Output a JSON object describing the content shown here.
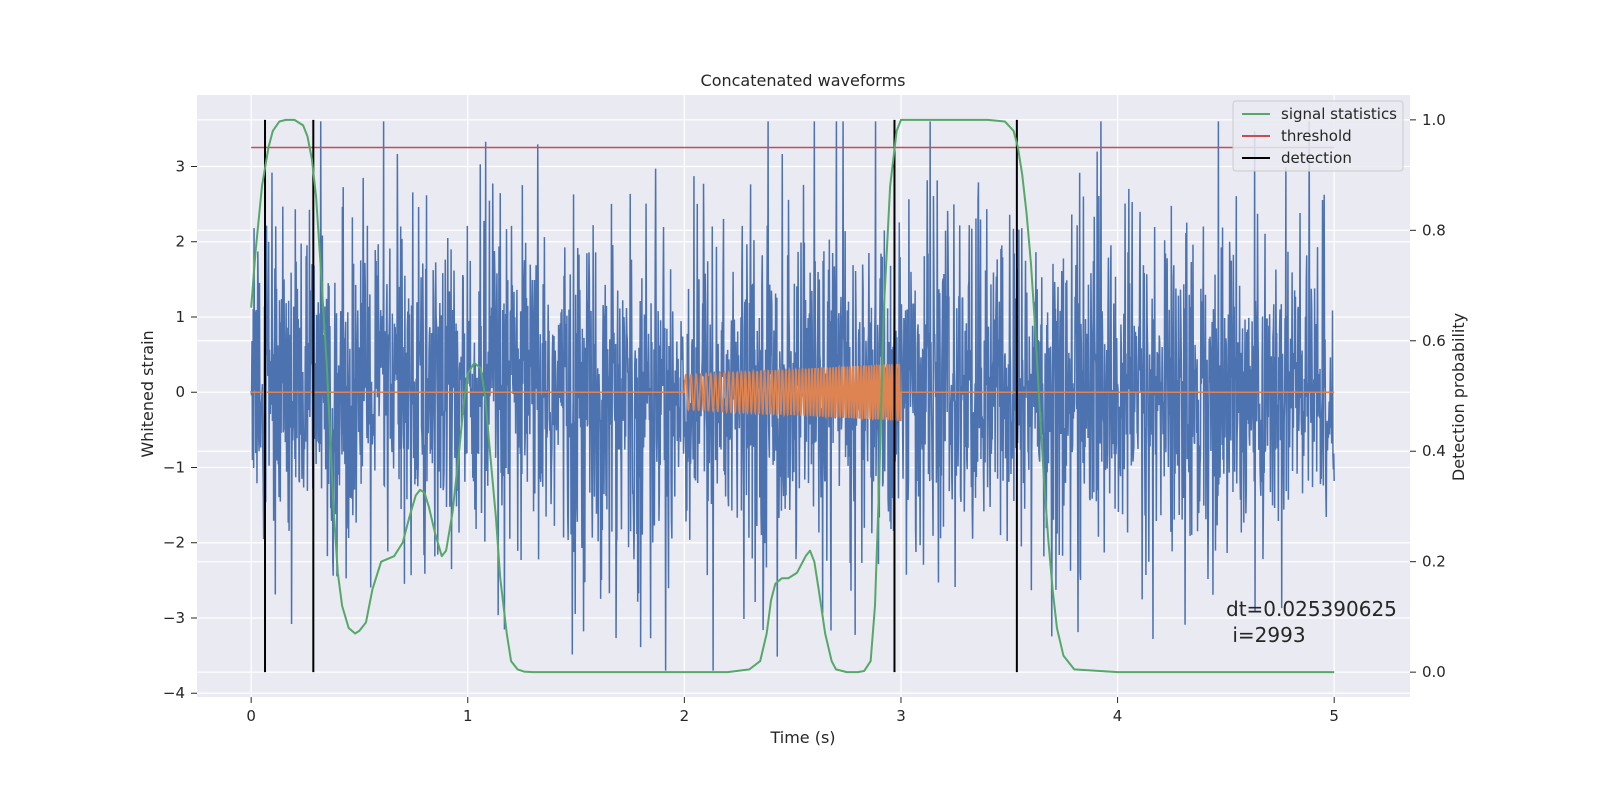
{
  "chart_data": {
    "type": "line",
    "title": "Concatenated waveforms",
    "xlabel": "Time (s)",
    "ylabel": "Whitened strain",
    "y2label": "Detection probability",
    "xlim": [
      -0.25,
      5.35
    ],
    "ylim": [
      -4.05,
      3.95
    ],
    "y2lim": [
      -0.045,
      1.045
    ],
    "x_ticks": [
      0,
      1,
      2,
      3,
      4,
      5
    ],
    "y_ticks": [
      -4,
      -3,
      -2,
      -1,
      0,
      1,
      2,
      3
    ],
    "y2_ticks": [
      0.0,
      0.2,
      0.4,
      0.6,
      0.8,
      1.0
    ],
    "x_tick_labels": [
      "0",
      "1",
      "2",
      "3",
      "4",
      "5"
    ],
    "y_tick_labels": [
      "−4",
      "−3",
      "−2",
      "−1",
      "0",
      "1",
      "2",
      "3"
    ],
    "y2_tick_labels": [
      "0.0",
      "0.2",
      "0.4",
      "0.6",
      "0.8",
      "1.0"
    ],
    "grid": true,
    "legend_position": "top-right",
    "series": [
      {
        "name": "",
        "role": "whitened noise strain",
        "color": "#4c72b0",
        "x_range": [
          0,
          5
        ],
        "amplitude_envelope": [
          -3.7,
          3.6
        ]
      },
      {
        "name": "",
        "role": "injected chirp waveform",
        "color": "#dd8452",
        "x_range": [
          0,
          5
        ],
        "chirp_x_range": [
          2.0,
          3.0
        ],
        "chirp_amplitude_start": 0.23,
        "chirp_amplitude_end": 0.38
      },
      {
        "name": "signal statistics",
        "axis": "right",
        "color": "#55a868",
        "x": [
          0.0,
          0.02,
          0.05,
          0.08,
          0.1,
          0.13,
          0.16,
          0.2,
          0.24,
          0.26,
          0.28,
          0.3,
          0.32,
          0.35,
          0.38,
          0.4,
          0.42,
          0.45,
          0.48,
          0.5,
          0.53,
          0.56,
          0.6,
          0.63,
          0.66,
          0.7,
          0.73,
          0.76,
          0.78,
          0.8,
          0.82,
          0.85,
          0.88,
          0.9,
          0.93,
          0.96,
          0.98,
          1.0,
          1.03,
          1.06,
          1.08,
          1.1,
          1.13,
          1.15,
          1.18,
          1.2,
          1.23,
          1.26,
          1.3,
          1.35,
          1.5,
          1.8,
          2.1,
          2.2,
          2.3,
          2.35,
          2.38,
          2.4,
          2.42,
          2.45,
          2.48,
          2.52,
          2.56,
          2.58,
          2.6,
          2.62,
          2.65,
          2.68,
          2.7,
          2.75,
          2.8,
          2.83,
          2.86,
          2.88,
          2.9,
          2.92,
          2.95,
          2.98,
          3.0,
          3.05,
          3.2,
          3.4,
          3.48,
          3.52,
          3.54,
          3.56,
          3.58,
          3.6,
          3.62,
          3.64,
          3.66,
          3.68,
          3.7,
          3.72,
          3.75,
          3.8,
          4.0,
          4.5,
          5.0
        ],
        "values": [
          0.66,
          0.76,
          0.88,
          0.95,
          0.98,
          0.997,
          1.0,
          1.0,
          0.99,
          0.97,
          0.93,
          0.86,
          0.74,
          0.55,
          0.3,
          0.18,
          0.12,
          0.08,
          0.07,
          0.075,
          0.09,
          0.15,
          0.2,
          0.205,
          0.21,
          0.235,
          0.28,
          0.32,
          0.33,
          0.325,
          0.3,
          0.25,
          0.21,
          0.22,
          0.29,
          0.4,
          0.48,
          0.54,
          0.56,
          0.55,
          0.5,
          0.41,
          0.28,
          0.17,
          0.07,
          0.02,
          0.005,
          0.001,
          0.0,
          0.0,
          0.0,
          0.0,
          0.0,
          0.0,
          0.005,
          0.02,
          0.07,
          0.13,
          0.16,
          0.17,
          0.17,
          0.18,
          0.21,
          0.22,
          0.2,
          0.15,
          0.07,
          0.02,
          0.005,
          0.0,
          0.0,
          0.002,
          0.02,
          0.12,
          0.35,
          0.65,
          0.88,
          0.98,
          1.0,
          1.0,
          1.0,
          1.0,
          0.997,
          0.98,
          0.95,
          0.9,
          0.83,
          0.74,
          0.62,
          0.48,
          0.35,
          0.24,
          0.15,
          0.08,
          0.03,
          0.005,
          0.0,
          0.0,
          0.0
        ]
      },
      {
        "name": "threshold",
        "axis": "right",
        "color": "#c44e52",
        "x": [
          0,
          5
        ],
        "values": [
          0.95,
          0.95
        ]
      },
      {
        "name": "detection",
        "axis": "right",
        "color": "#000000",
        "vlines_x": [
          0.064,
          0.287,
          2.97,
          3.535
        ],
        "ymin": 0.0,
        "ymax": 1.0
      }
    ],
    "annotation": {
      "line1": "dt=0.025390625",
      "line2": " i=2993",
      "x": 4.5,
      "y": -3.2
    }
  }
}
